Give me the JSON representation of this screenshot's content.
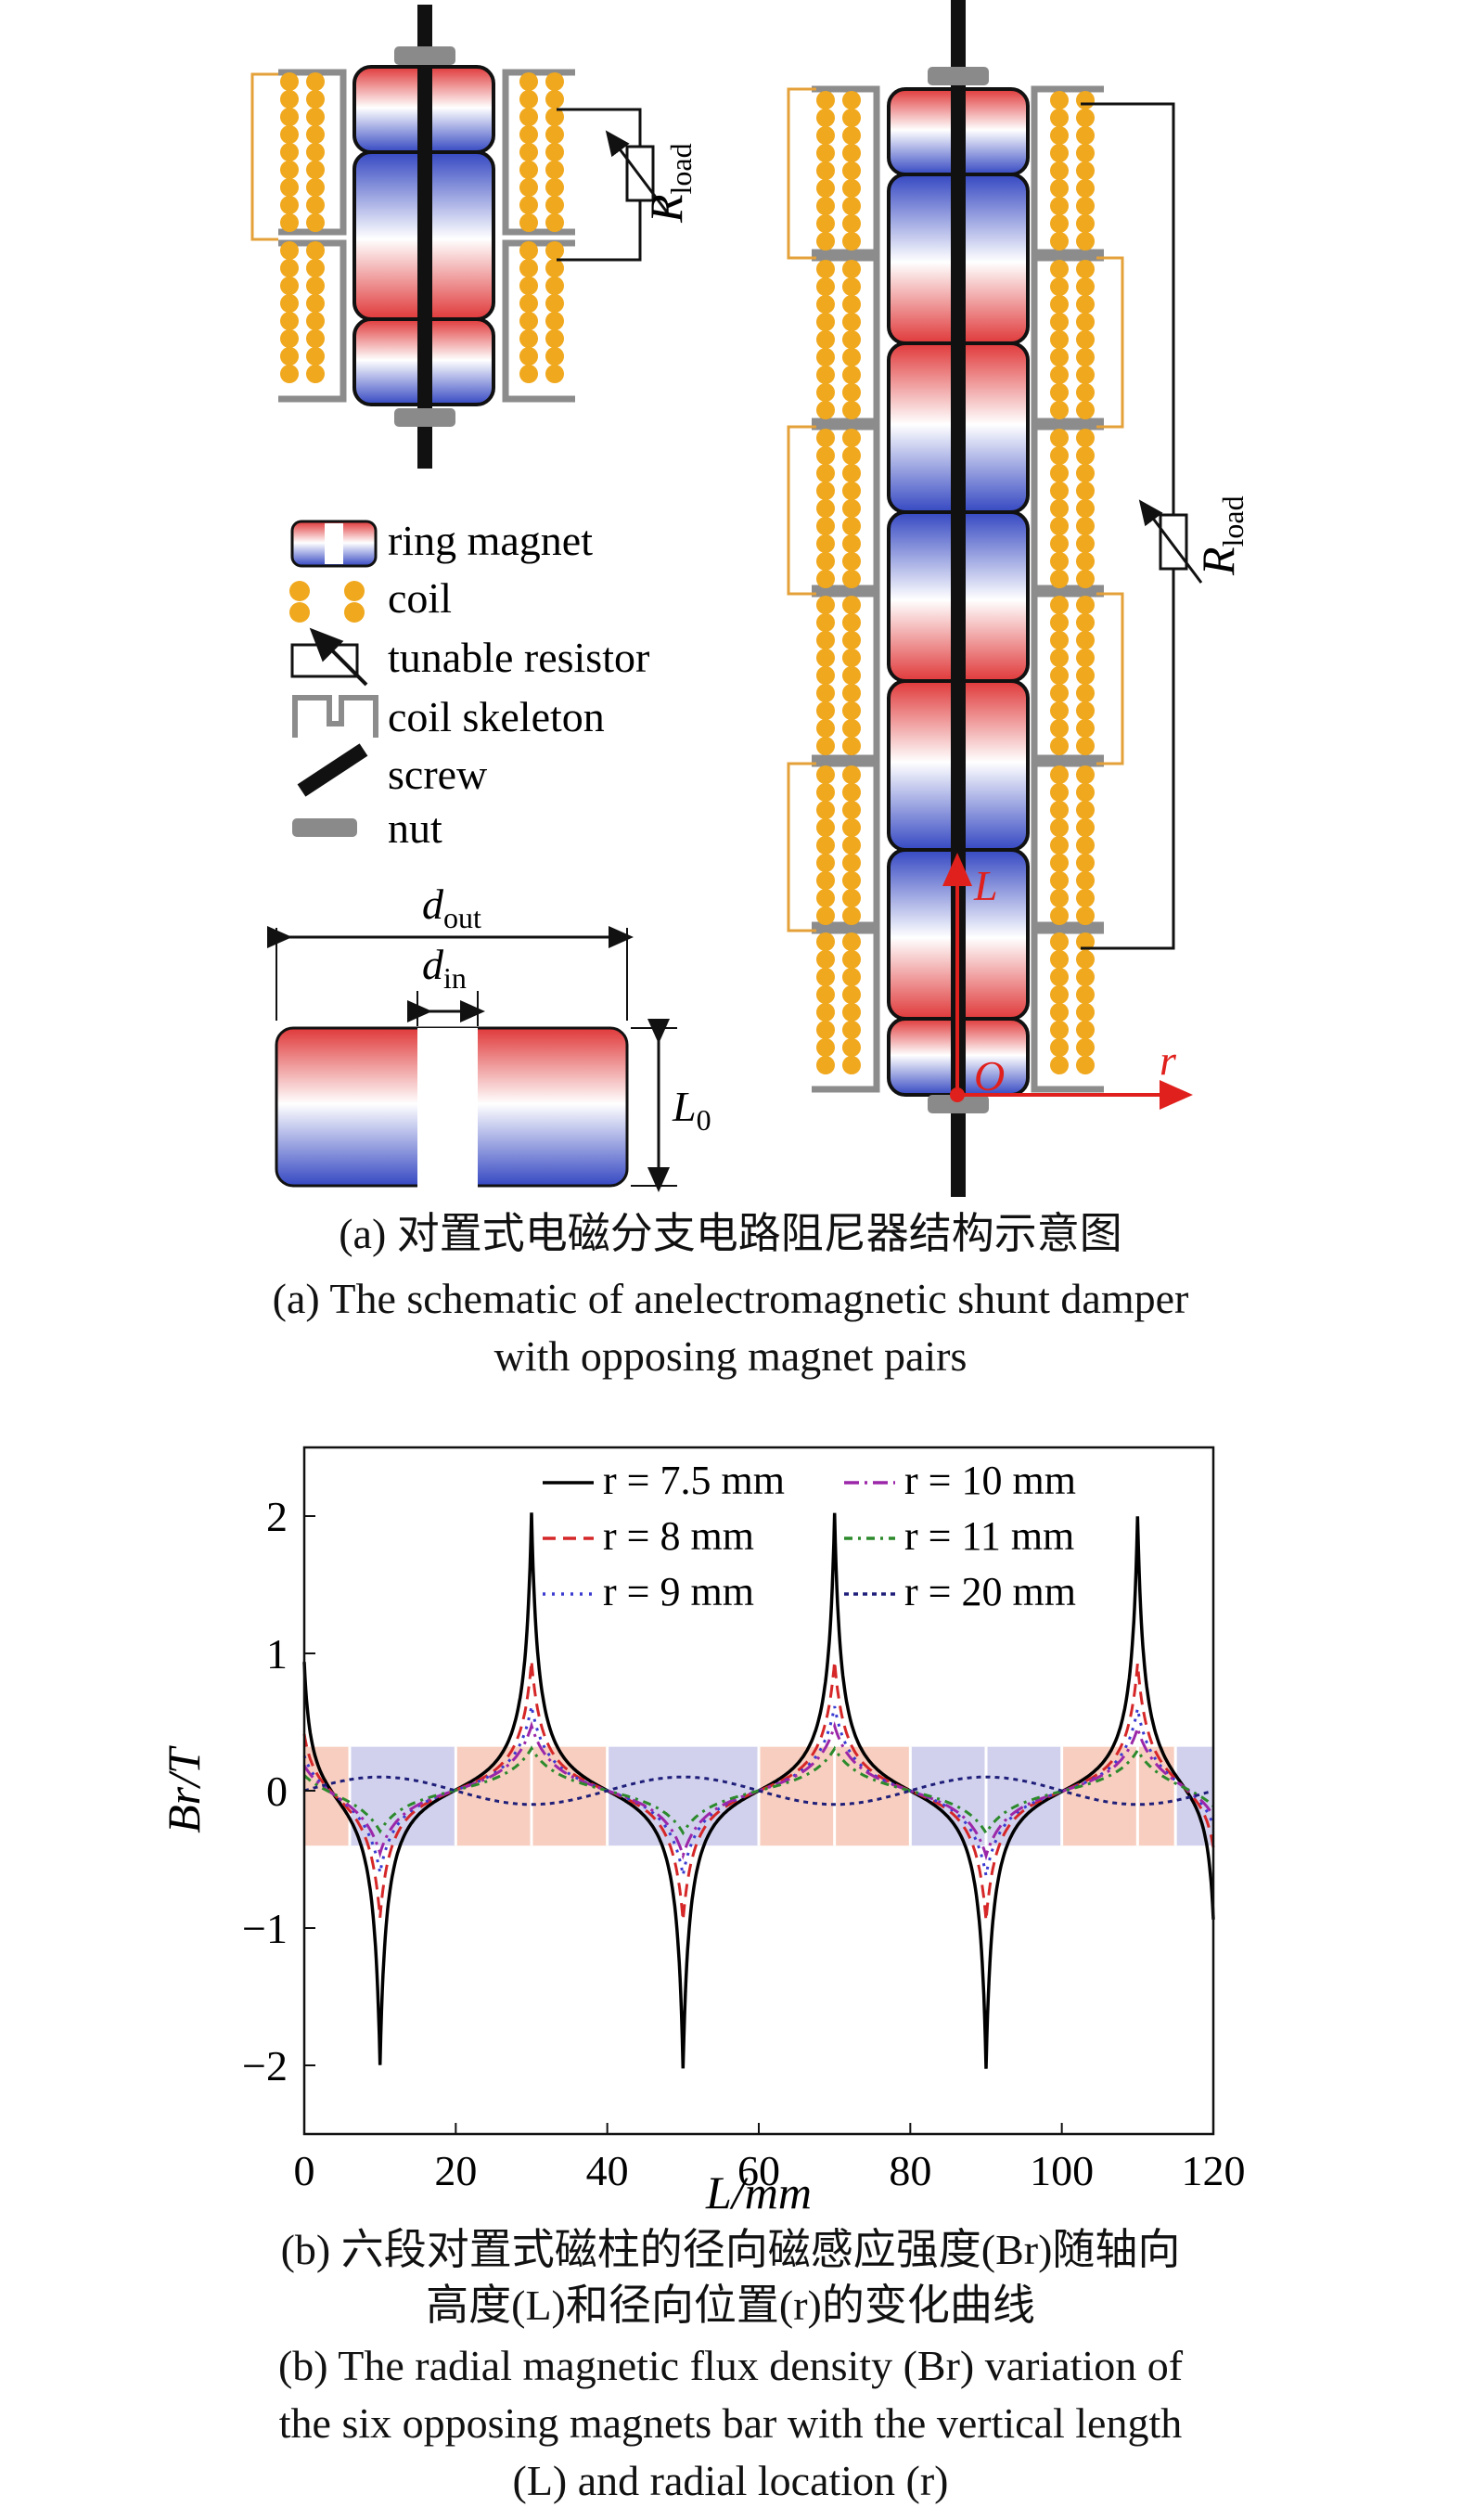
{
  "figure_a": {
    "legend": {
      "ring_magnet": "ring magnet",
      "coil": "coil",
      "tunable_resistor": "tunable resistor",
      "coil_skeleton": "coil skeleton",
      "screw": "screw",
      "nut": "nut"
    },
    "resistor_symbol": "R",
    "resistor_subscript": "load",
    "dim_out_symbol": "d",
    "dim_out_subscript": "out",
    "dim_in_symbol": "d",
    "dim_in_subscript": "in",
    "dim_len_symbol": "L",
    "dim_len_subscript": "0",
    "axis_L": "L",
    "axis_O": "O",
    "axis_r": "r",
    "caption_cn": "(a) 对置式电磁分支电路阻尼器结构示意图",
    "caption_en_1": "(a) The schematic of anelectromagnetic shunt damper",
    "caption_en_2": "with opposing magnet pairs"
  },
  "figure_b": {
    "caption_cn_1": "(b) 六段对置式磁柱的径向磁感应强度(Br)随轴向",
    "caption_cn_2": "高度(L)和径向位置(r)的变化曲线",
    "caption_en_1": "(b) The radial magnetic flux density (Br) variation of",
    "caption_en_2": "the six opposing magnets bar with the vertical length",
    "caption_en_3": "(L) and radial location (r)"
  },
  "chart_data": {
    "type": "line",
    "xlabel": "L/mm",
    "ylabel": "Br/T",
    "xlim": [
      0,
      120
    ],
    "ylim": [
      -2.5,
      2.5
    ],
    "xticks": [
      0,
      20,
      40,
      60,
      80,
      100,
      120
    ],
    "yticks": [
      -2,
      -1,
      0,
      1,
      2
    ],
    "legend_position": "top",
    "series": [
      {
        "name": "r = 7.5 mm",
        "color": "#000000",
        "dash": "",
        "peak": 2.15,
        "tail": 0.18,
        "spread": 0.9
      },
      {
        "name": "r = 8 mm",
        "color": "#d62728",
        "dash": "14,8",
        "peak": 1.05,
        "tail": 0.15,
        "spread": 1.6
      },
      {
        "name": "r = 9 mm",
        "color": "#3b3bd1",
        "dash": "3,7",
        "peak": 0.72,
        "tail": 0.12,
        "spread": 2.4
      },
      {
        "name": "r = 10 mm",
        "color": "#9b27a8",
        "dash": "16,6,3,6",
        "peak": 0.58,
        "tail": 0.1,
        "spread": 3.2
      },
      {
        "name": "r = 11 mm",
        "color": "#2c8a2c",
        "dash": "9,6,3,6",
        "peak": 0.4,
        "tail": 0.09,
        "spread": 4.2
      },
      {
        "name": "r = 20 mm",
        "color": "#1f1f7a",
        "dash": "5,5",
        "peak": 0.1,
        "tail": 0.0,
        "spread": 0
      }
    ],
    "peaks_positive_at": [
      30,
      70,
      110
    ],
    "peaks_negative_at": [
      10,
      50,
      90
    ]
  }
}
